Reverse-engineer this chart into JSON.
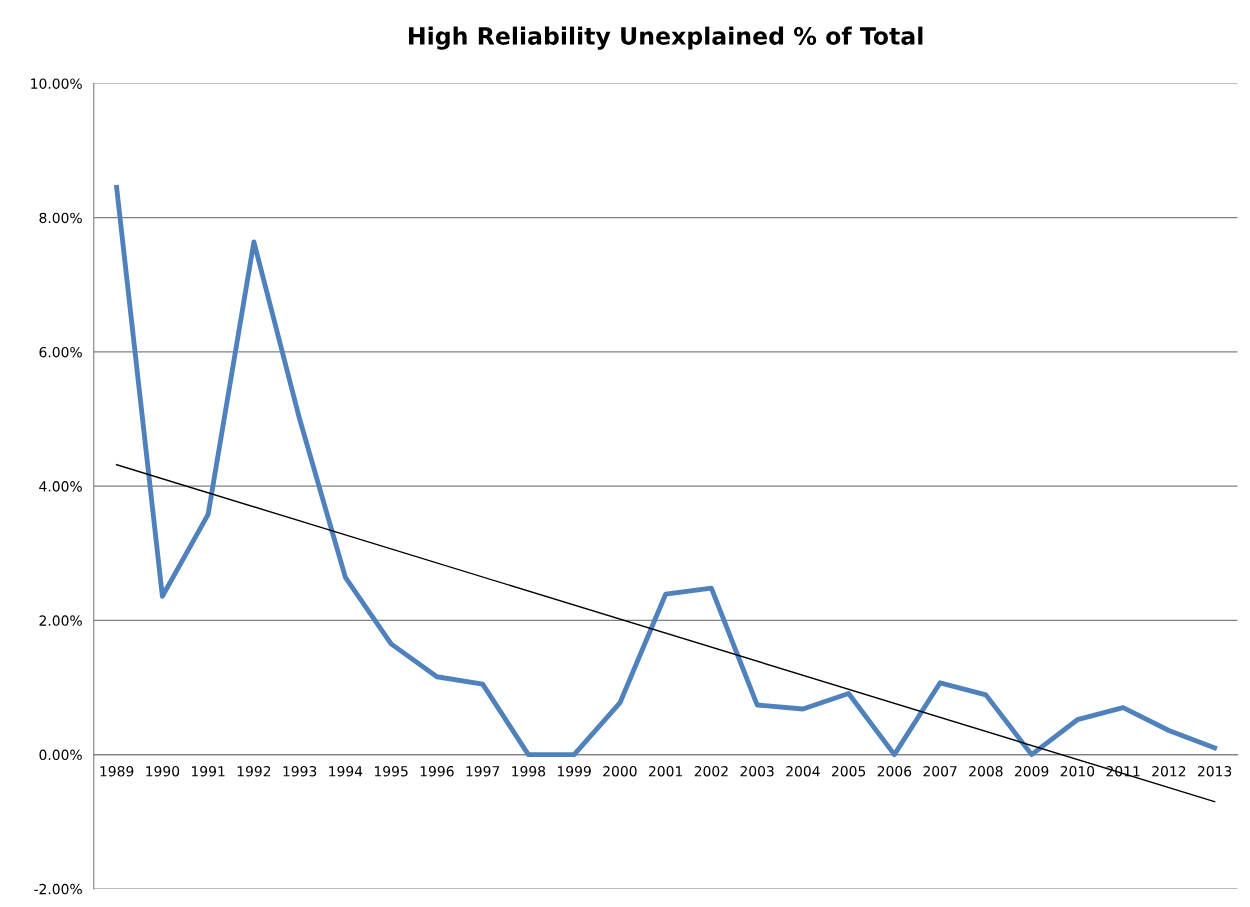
{
  "chart_data": {
    "type": "line",
    "title": "High Reliability Unexplained % of Total",
    "categories": [
      "1989",
      "1990",
      "1991",
      "1992",
      "1993",
      "1994",
      "1995",
      "1996",
      "1997",
      "1998",
      "1999",
      "2000",
      "2001",
      "2002",
      "2003",
      "2004",
      "2005",
      "2006",
      "2007",
      "2008",
      "2009",
      "2010",
      "2011",
      "2012",
      "2013"
    ],
    "series": [
      {
        "color": "#4f81bd",
        "values": [
          8.45,
          2.36,
          3.58,
          7.64,
          5.0,
          2.64,
          1.65,
          1.16,
          1.05,
          0,
          0,
          0.77,
          2.39,
          2.48,
          0.74,
          0.68,
          0.91,
          0,
          1.07,
          0.89,
          0,
          0.52,
          0.7,
          0.36,
          0.1
        ]
      },
      {
        "type": "line",
        "color": "#000000",
        "values": [
          4.32,
          null,
          null,
          null,
          null,
          null,
          null,
          null,
          null,
          null,
          null,
          null,
          null,
          null,
          null,
          null,
          null,
          null,
          null,
          null,
          null,
          null,
          null,
          null,
          -0.7
        ]
      }
    ],
    "ylim": [
      -2,
      10
    ],
    "yticks": [
      {
        "value": -2,
        "label": "-2.00%"
      },
      {
        "value": 0,
        "label": "0.00%"
      },
      {
        "value": 2,
        "label": "2.00%"
      },
      {
        "value": 4,
        "label": "4.00%"
      },
      {
        "value": 6,
        "label": "6.00%"
      },
      {
        "value": 8,
        "label": "8.00%"
      },
      {
        "value": 10,
        "label": "10.00%"
      }
    ],
    "grid": "y",
    "legend": false,
    "marker": "none",
    "line_style": "solid"
  }
}
